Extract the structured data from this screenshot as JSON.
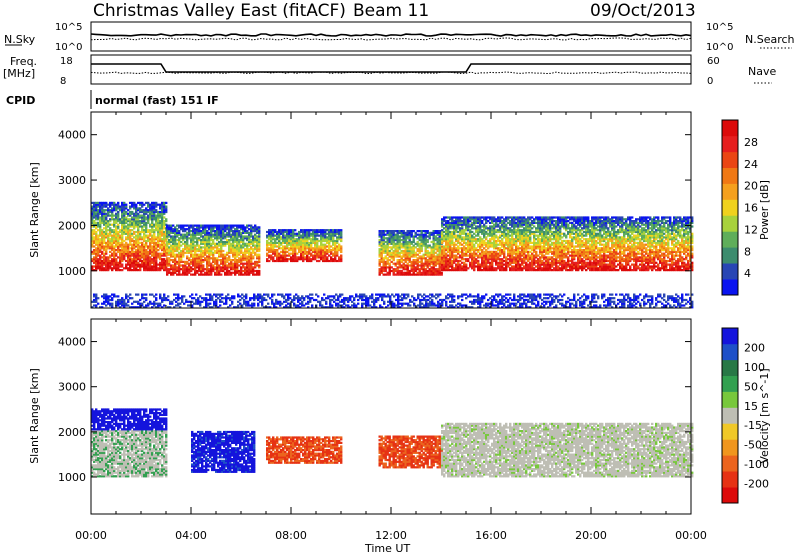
{
  "header": {
    "station": "Christmas Valley East (fitACF)",
    "beam": "Beam 11",
    "date": "09/Oct/2013"
  },
  "strip_labels": {
    "nsky": "N.Sky",
    "nsearch": "N.Search",
    "freq": "Freq.",
    "freq_unit": "[MHz]",
    "nave": "Nave",
    "cpid": "CPID",
    "cpid_value": "normal (fast) 151 IF",
    "noise_ticks": [
      "10^5",
      "10^0"
    ],
    "freq_ticks": [
      "18",
      "8"
    ],
    "nave_ticks": [
      "60",
      "0"
    ]
  },
  "axes": {
    "ylabel": "Slant Range [km]",
    "xlabel": "Time UT",
    "x_ticks": [
      "00:00",
      "04:00",
      "08:00",
      "12:00",
      "16:00",
      "20:00",
      "00:00"
    ],
    "y_ticks": [
      "1000",
      "2000",
      "3000",
      "4000"
    ]
  },
  "chart_data": [
    {
      "type": "heatmap",
      "parameter": "Power",
      "colorbar_label": "Power [dB]",
      "x_range_hours": [
        0,
        24
      ],
      "y_range_km": [
        180,
        4500
      ],
      "colorbar_ticks": [
        "4",
        "8",
        "12",
        "16",
        "20",
        "24",
        "28"
      ],
      "colormap": [
        "#0a14f0",
        "#2846b4",
        "#3c8c6e",
        "#5fae5a",
        "#a8d23c",
        "#f0d21e",
        "#f5a01e",
        "#f07814",
        "#eb4614",
        "#e61e1e",
        "#dc0a0a"
      ],
      "echo_regions": [
        {
          "t": [
            0.0,
            3.0
          ],
          "range_km": [
            1000,
            2500
          ]
        },
        {
          "t": [
            3.0,
            6.7
          ],
          "range_km": [
            900,
            2000
          ]
        },
        {
          "t": [
            7.0,
            10.0
          ],
          "range_km": [
            1200,
            1900
          ]
        },
        {
          "t": [
            11.5,
            14.0
          ],
          "range_km": [
            900,
            1900
          ]
        },
        {
          "t": [
            14.0,
            24.0
          ],
          "range_km": [
            1000,
            2200
          ]
        },
        {
          "t": [
            0.0,
            24.0
          ],
          "range_km": [
            180,
            500
          ]
        }
      ]
    },
    {
      "type": "heatmap",
      "parameter": "Velocity",
      "colorbar_label": "Velocity [m s^-1]",
      "x_range_hours": [
        0,
        24
      ],
      "y_range_km": [
        180,
        4500
      ],
      "colorbar_ticks": [
        "200",
        "100",
        "50",
        "15",
        "-15",
        "-50",
        "-100",
        "-200"
      ],
      "colormap": [
        "#1414dc",
        "#1e50c8",
        "#287846",
        "#32a050",
        "#78c83c",
        "#bebeb4",
        "#f0c828",
        "#f0961e",
        "#eb641e",
        "#e63214",
        "#dc0a0a"
      ],
      "echo_regions": [
        {
          "t": [
            0.0,
            3.0
          ],
          "range_km": [
            1000,
            2500
          ],
          "velocity_ms": "+200 / ground scatter"
        },
        {
          "t": [
            4.0,
            6.5
          ],
          "range_km": [
            1100,
            2000
          ],
          "velocity_ms": "+200"
        },
        {
          "t": [
            7.0,
            10.0
          ],
          "range_km": [
            1300,
            1900
          ],
          "velocity_ms": "-100"
        },
        {
          "t": [
            11.5,
            14.0
          ],
          "range_km": [
            1200,
            1900
          ],
          "velocity_ms": "-100"
        },
        {
          "t": [
            14.0,
            24.0
          ],
          "range_km": [
            1000,
            2200
          ],
          "velocity_ms": "ground scatter"
        }
      ]
    }
  ]
}
